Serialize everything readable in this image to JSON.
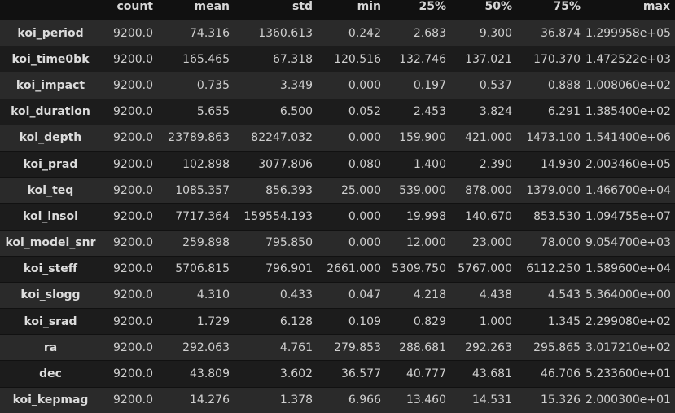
{
  "columns": [
    "count",
    "mean",
    "std",
    "min",
    "25%",
    "50%",
    "75%",
    "max"
  ],
  "rows": [
    {
      "name": "koi_period",
      "values": [
        "9200.0",
        "74.316",
        "1360.613",
        "0.242",
        "2.683",
        "9.300",
        "36.874",
        "1.299958e+05"
      ]
    },
    {
      "name": "koi_time0bk",
      "values": [
        "9200.0",
        "165.465",
        "67.318",
        "120.516",
        "132.746",
        "137.021",
        "170.370",
        "1.472522e+03"
      ]
    },
    {
      "name": "koi_impact",
      "values": [
        "9200.0",
        "0.735",
        "3.349",
        "0.000",
        "0.197",
        "0.537",
        "0.888",
        "1.008060e+02"
      ]
    },
    {
      "name": "koi_duration",
      "values": [
        "9200.0",
        "5.655",
        "6.500",
        "0.052",
        "2.453",
        "3.824",
        "6.291",
        "1.385400e+02"
      ]
    },
    {
      "name": "koi_depth",
      "values": [
        "9200.0",
        "23789.863",
        "82247.032",
        "0.000",
        "159.900",
        "421.000",
        "1473.100",
        "1.541400e+06"
      ]
    },
    {
      "name": "koi_prad",
      "values": [
        "9200.0",
        "102.898",
        "3077.806",
        "0.080",
        "1.400",
        "2.390",
        "14.930",
        "2.003460e+05"
      ]
    },
    {
      "name": "koi_teq",
      "values": [
        "9200.0",
        "1085.357",
        "856.393",
        "25.000",
        "539.000",
        "878.000",
        "1379.000",
        "1.466700e+04"
      ]
    },
    {
      "name": "koi_insol",
      "values": [
        "9200.0",
        "7717.364",
        "159554.193",
        "0.000",
        "19.998",
        "140.670",
        "853.530",
        "1.094755e+07"
      ]
    },
    {
      "name": "koi_model_snr",
      "values": [
        "9200.0",
        "259.898",
        "795.850",
        "0.000",
        "12.000",
        "23.000",
        "78.000",
        "9.054700e+03"
      ]
    },
    {
      "name": "koi_steff",
      "values": [
        "9200.0",
        "5706.815",
        "796.901",
        "2661.000",
        "5309.750",
        "5767.000",
        "6112.250",
        "1.589600e+04"
      ]
    },
    {
      "name": "koi_slogg",
      "values": [
        "9200.0",
        "4.310",
        "0.433",
        "0.047",
        "4.218",
        "4.438",
        "4.543",
        "5.364000e+00"
      ]
    },
    {
      "name": "koi_srad",
      "values": [
        "9200.0",
        "1.729",
        "6.128",
        "0.109",
        "0.829",
        "1.000",
        "1.345",
        "2.299080e+02"
      ]
    },
    {
      "name": "ra",
      "values": [
        "9200.0",
        "292.063",
        "4.761",
        "279.853",
        "288.681",
        "292.263",
        "295.865",
        "3.017210e+02"
      ]
    },
    {
      "name": "dec",
      "values": [
        "9200.0",
        "43.809",
        "3.602",
        "36.577",
        "40.777",
        "43.681",
        "46.706",
        "5.233600e+01"
      ]
    },
    {
      "name": "koi_kepmag",
      "values": [
        "9200.0",
        "14.276",
        "1.378",
        "6.966",
        "13.460",
        "14.531",
        "15.326",
        "2.000300e+01"
      ]
    }
  ]
}
